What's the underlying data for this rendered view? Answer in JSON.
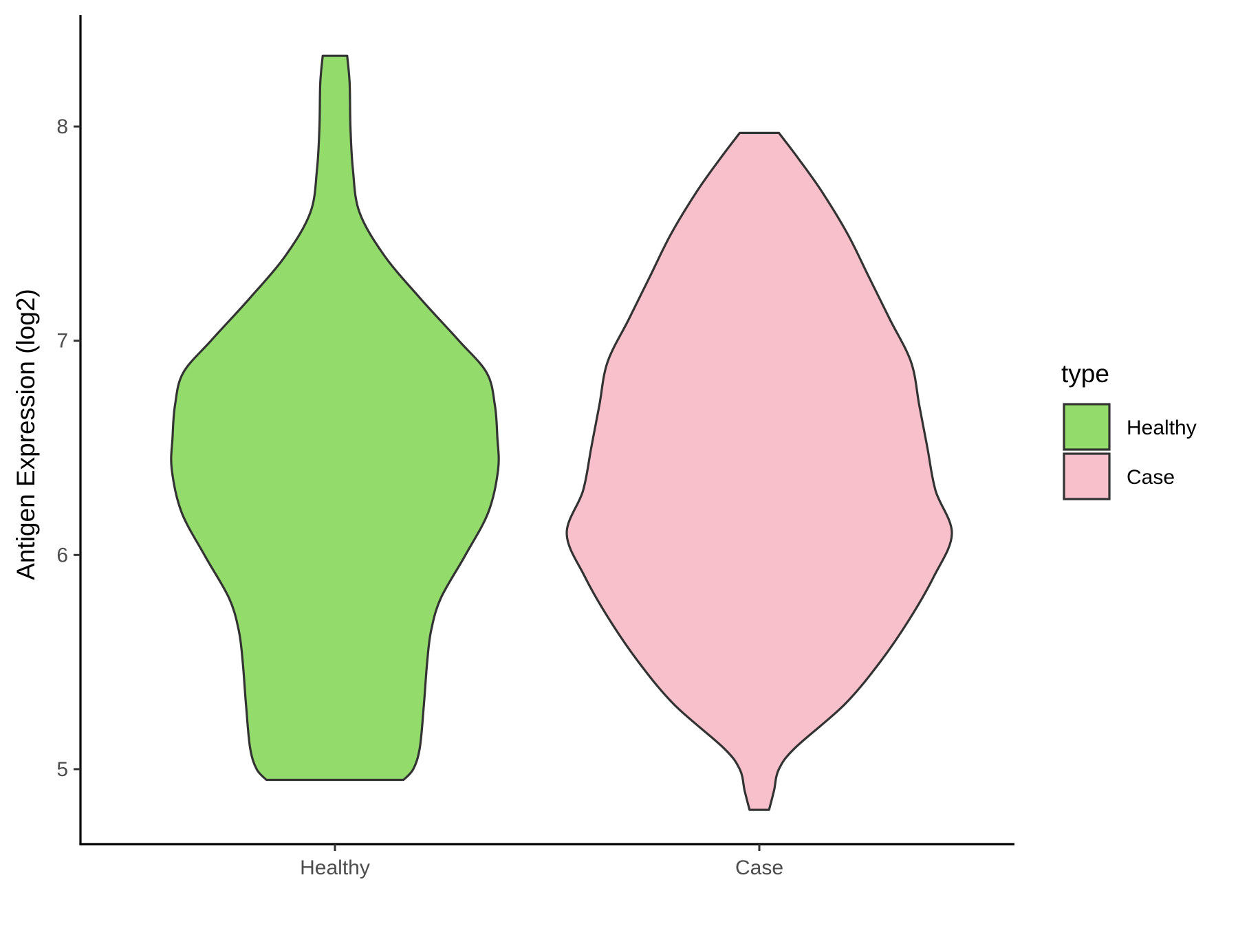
{
  "chart_data": {
    "type": "violin",
    "categories": [
      "Healthy",
      "Case"
    ],
    "ylabel": "Antigen Expression (log2)",
    "xlabel": "",
    "yticks": [
      5,
      6,
      7,
      8
    ],
    "ylim": [
      4.65,
      8.52
    ],
    "legend": {
      "title": "type",
      "position": "right",
      "entries": [
        "Healthy",
        "Case"
      ]
    },
    "colors": {
      "Healthy": "#93dc6b",
      "Case": "#f8c0cb",
      "outline": "#333333"
    },
    "series": [
      {
        "category": "Healthy",
        "min": 4.95,
        "max": 8.33,
        "density_profile": [
          [
            4.95,
            0.42
          ],
          [
            5.0,
            0.48
          ],
          [
            5.1,
            0.52
          ],
          [
            5.3,
            0.545
          ],
          [
            5.5,
            0.565
          ],
          [
            5.65,
            0.59
          ],
          [
            5.8,
            0.65
          ],
          [
            6.0,
            0.8
          ],
          [
            6.2,
            0.94
          ],
          [
            6.4,
            1.0
          ],
          [
            6.55,
            0.995
          ],
          [
            6.7,
            0.98
          ],
          [
            6.85,
            0.93
          ],
          [
            7.0,
            0.76
          ],
          [
            7.2,
            0.52
          ],
          [
            7.4,
            0.3
          ],
          [
            7.6,
            0.15
          ],
          [
            7.8,
            0.11
          ],
          [
            8.0,
            0.095
          ],
          [
            8.2,
            0.09
          ],
          [
            8.33,
            0.075
          ]
        ]
      },
      {
        "category": "Case",
        "min": 4.81,
        "max": 7.97,
        "density_profile": [
          [
            4.81,
            0.06
          ],
          [
            4.9,
            0.09
          ],
          [
            5.0,
            0.12
          ],
          [
            5.1,
            0.22
          ],
          [
            5.3,
            0.52
          ],
          [
            5.5,
            0.74
          ],
          [
            5.7,
            0.92
          ],
          [
            5.9,
            1.07
          ],
          [
            6.1,
            1.18
          ],
          [
            6.3,
            1.08
          ],
          [
            6.5,
            1.03
          ],
          [
            6.7,
            0.98
          ],
          [
            6.9,
            0.93
          ],
          [
            7.1,
            0.8
          ],
          [
            7.3,
            0.67
          ],
          [
            7.5,
            0.54
          ],
          [
            7.7,
            0.38
          ],
          [
            7.85,
            0.24
          ],
          [
            7.97,
            0.12
          ]
        ]
      }
    ]
  }
}
